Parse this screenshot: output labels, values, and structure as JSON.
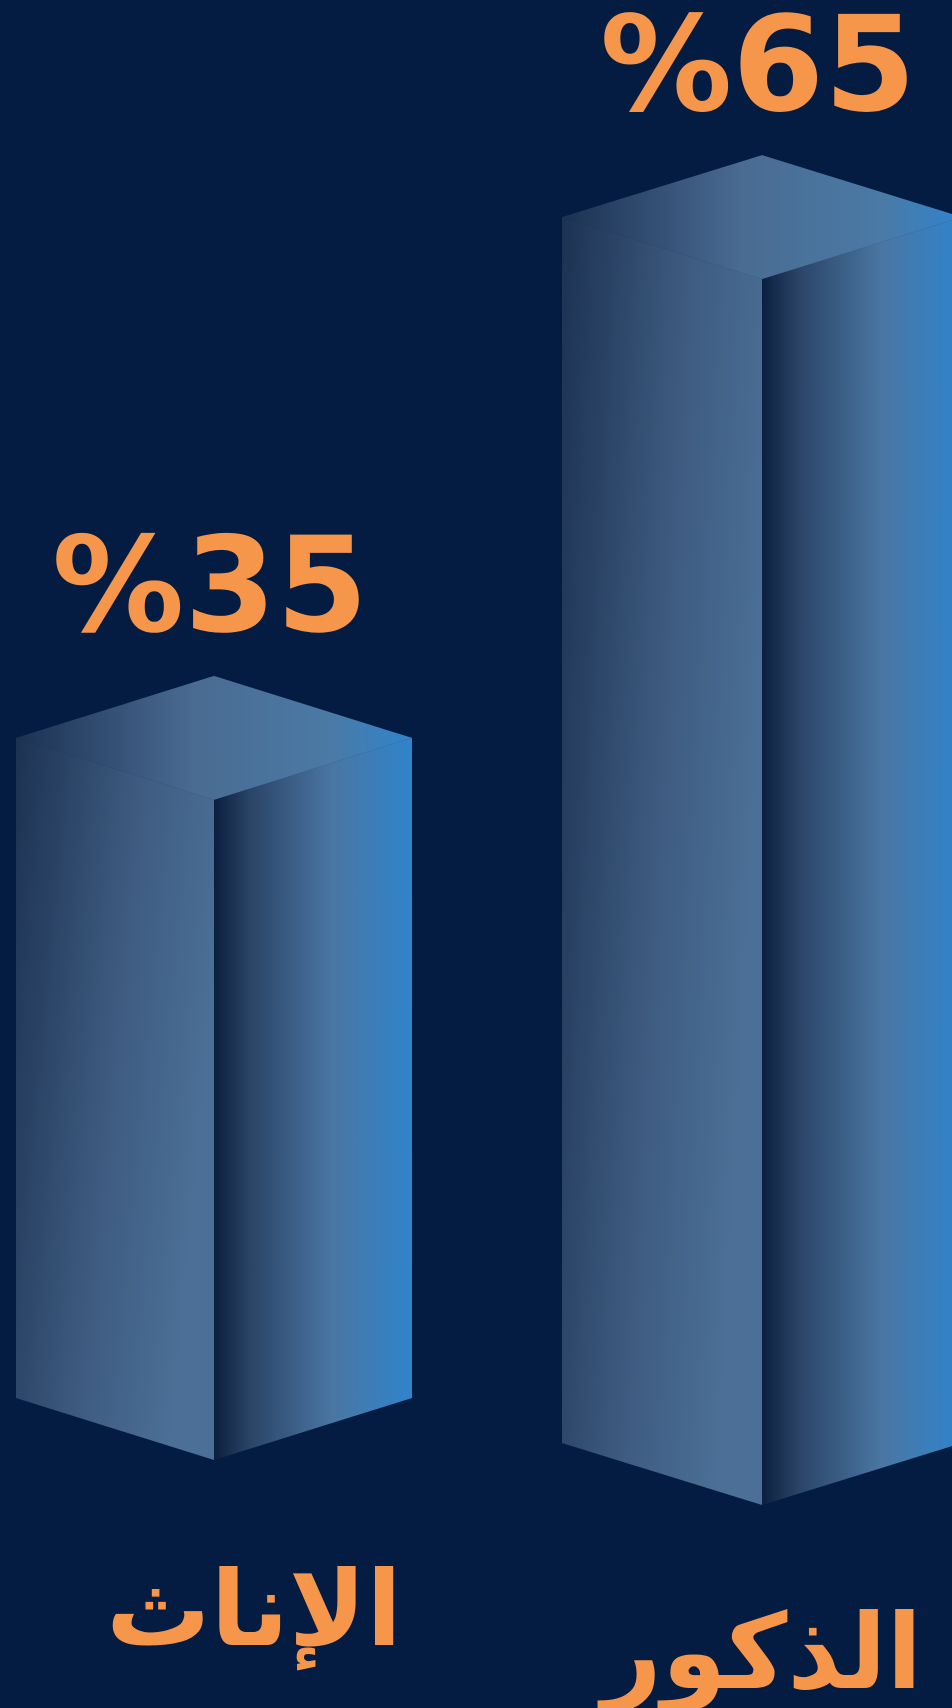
{
  "colors": {
    "background": "#041c41",
    "label": "#f6964a",
    "bar_light": "#4b74a0",
    "bar_dark": "#1c3253",
    "bar_accent": "#2f82c6"
  },
  "chart_data": {
    "type": "bar",
    "style": "3d-prism",
    "categories": [
      "الإناث",
      "الذكور"
    ],
    "values": [
      35,
      65
    ],
    "value_labels": [
      "%35",
      "%65"
    ],
    "ylim": [
      0,
      70
    ],
    "grid": false,
    "legend": "none",
    "title": "",
    "xlabel": "",
    "ylabel": ""
  }
}
